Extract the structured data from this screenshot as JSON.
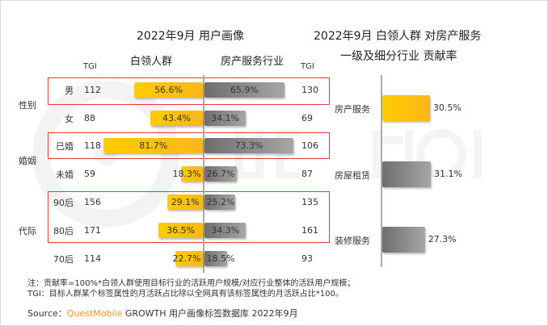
{
  "left_title": "2022年9月 用户画像",
  "right_title_line1": "2022年9月 白领人群 对房产服务",
  "right_title_line2": "一级及细分行业 贡献率",
  "tgi_label": "TGI",
  "colors": {
    "white_collar": "#FFC000",
    "industry": "#808080",
    "highlight_box": "#E53935",
    "brand": "#F7931E"
  },
  "chart_data": [
    {
      "type": "bar",
      "orientation": "horizontal-butterfly",
      "series": [
        {
          "name": "白领人群",
          "values": [
            56.6,
            43.4,
            81.7,
            18.3,
            29.1,
            36.5,
            22.7
          ]
        },
        {
          "name": "房产服务行业",
          "values": [
            65.9,
            34.1,
            73.3,
            26.7,
            25.2,
            34.3,
            18.5
          ]
        }
      ],
      "categories": [
        "男",
        "女",
        "已婚",
        "未婚",
        "90后",
        "80后",
        "70后"
      ],
      "groups": [
        {
          "label": "性别",
          "items": [
            "男",
            "女"
          ]
        },
        {
          "label": "婚姻",
          "items": [
            "已婚",
            "未婚"
          ]
        },
        {
          "label": "代际",
          "items": [
            "90后",
            "80后",
            "70后"
          ]
        }
      ],
      "tgi_left": [
        112,
        88,
        118,
        59,
        156,
        171,
        114
      ],
      "tgi_right": [
        130,
        69,
        106,
        87,
        135,
        161,
        93
      ],
      "labels": [
        "56.6%",
        "43.4%",
        "81.7%",
        "18.3%",
        "29.1%",
        "36.5%",
        "22.7%"
      ],
      "labels_right": [
        "65.9%",
        "34.1%",
        "73.3%",
        "26.7%",
        "25.2%",
        "34.3%",
        "18.5%"
      ],
      "highlighted": [
        "男",
        "已婚",
        "90后",
        "80后"
      ]
    },
    {
      "type": "bar",
      "orientation": "horizontal",
      "categories": [
        "房产服务",
        "房屋租赁",
        "装修服务"
      ],
      "values": [
        30.5,
        31.1,
        27.3
      ],
      "labels": [
        "30.5%",
        "31.1%",
        "27.3%"
      ]
    }
  ],
  "notes": [
    "注：贡献率=100%*白领人群使用目标行业的活跃用户规模/对应行业整体的活跃用户规模；",
    "TGI：目标人群某个标签属性的月活跃占比除以全网具有该标签属性的月活跃占比*100。"
  ],
  "source": {
    "prefix": "Source：",
    "brand": "QuestMobile",
    "text": "GROWTH 用户画像标签数据库 2022年9月"
  },
  "watermark": "QUESTMOBILE"
}
